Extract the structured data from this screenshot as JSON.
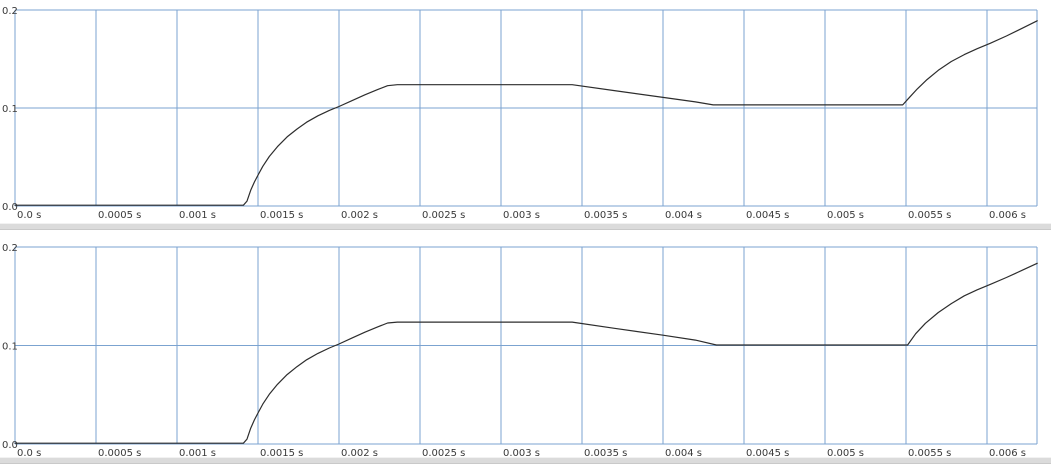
{
  "colors": {
    "grid": "#7ba3d0",
    "trace": "#2d2d2d",
    "tick_label": "#3a3a3a",
    "background": "#ffffff",
    "splitter": "#dbdbdb"
  },
  "chart_data": [
    {
      "type": "line",
      "title": "",
      "xlabel": "",
      "ylabel": "",
      "grid": true,
      "legend_position": "none",
      "xlim": [
        0,
        0.006309
      ],
      "ylim": [
        0,
        0.2
      ],
      "x_tick_values": [
        0,
        0.0005,
        0.001,
        0.0015,
        0.002,
        0.0025,
        0.003,
        0.0035,
        0.004,
        0.0045,
        0.005,
        0.0055,
        0.006
      ],
      "x_tick_labels": [
        "0.0 s",
        "0.0005 s",
        "0.001 s",
        "0.0015 s",
        "0.002 s",
        "0.0025 s",
        "0.003 s",
        "0.0035 s",
        "0.004 s",
        "0.0045 s",
        "0.005 s",
        "0.0055 s",
        "0.006 s"
      ],
      "y_tick_values": [
        0.2,
        0.1,
        0.0
      ],
      "y_tick_labels": [
        "0.2",
        "0.1",
        "0.0"
      ],
      "series": [
        {
          "points": [
            [
              0.0,
              0.0008
            ],
            [
              0.00141,
              0.0008
            ],
            [
              0.001432,
              0.005
            ],
            [
              0.001455,
              0.016
            ],
            [
              0.001478,
              0.0245
            ],
            [
              0.0015,
              0.0315
            ],
            [
              0.00153,
              0.0405
            ],
            [
              0.00157,
              0.0505
            ],
            [
              0.00162,
              0.0605
            ],
            [
              0.00168,
              0.0705
            ],
            [
              0.00174,
              0.0785
            ],
            [
              0.0018,
              0.0855
            ],
            [
              0.00187,
              0.092
            ],
            [
              0.00194,
              0.0975
            ],
            [
              0.002,
              0.1015
            ],
            [
              0.00208,
              0.1075
            ],
            [
              0.00216,
              0.1135
            ],
            [
              0.00224,
              0.119
            ],
            [
              0.0023,
              0.1228
            ],
            [
              0.00236,
              0.1238
            ],
            [
              0.00344,
              0.1238
            ],
            [
              0.0037,
              0.1178
            ],
            [
              0.004,
              0.1108
            ],
            [
              0.0042,
              0.1062
            ],
            [
              0.00431,
              0.1032
            ],
            [
              0.00548,
              0.1032
            ],
            [
              0.00552,
              0.1105
            ],
            [
              0.00557,
              0.1195
            ],
            [
              0.00563,
              0.129
            ],
            [
              0.0057,
              0.1385
            ],
            [
              0.00578,
              0.1475
            ],
            [
              0.00586,
              0.1545
            ],
            [
              0.00594,
              0.1605
            ],
            [
              0.00602,
              0.166
            ],
            [
              0.00612,
              0.1735
            ],
            [
              0.00622,
              0.1815
            ],
            [
              0.00631,
              0.189
            ]
          ]
        }
      ]
    },
    {
      "type": "line",
      "title": "",
      "xlabel": "",
      "ylabel": "",
      "grid": true,
      "legend_position": "none",
      "xlim": [
        0,
        0.006309
      ],
      "ylim": [
        0,
        0.2
      ],
      "x_tick_values": [
        0,
        0.0005,
        0.001,
        0.0015,
        0.002,
        0.0025,
        0.003,
        0.0035,
        0.004,
        0.0045,
        0.005,
        0.0055,
        0.006
      ],
      "x_tick_labels": [
        "0.0 s",
        "0.0005 s",
        "0.001 s",
        "0.0015 s",
        "0.002 s",
        "0.0025 s",
        "0.003 s",
        "0.0035 s",
        "0.004 s",
        "0.0045 s",
        "0.005 s",
        "0.0055 s",
        "0.006 s"
      ],
      "y_tick_values": [
        0.2,
        0.1,
        0.0
      ],
      "y_tick_labels": [
        "0.2",
        "0.1",
        "0.0"
      ],
      "series": [
        {
          "points": [
            [
              0.0,
              0.0008
            ],
            [
              0.00141,
              0.0008
            ],
            [
              0.001432,
              0.005
            ],
            [
              0.001455,
              0.016
            ],
            [
              0.001478,
              0.0245
            ],
            [
              0.0015,
              0.0315
            ],
            [
              0.00153,
              0.0405
            ],
            [
              0.00157,
              0.0505
            ],
            [
              0.00162,
              0.0605
            ],
            [
              0.00168,
              0.0705
            ],
            [
              0.00174,
              0.0785
            ],
            [
              0.0018,
              0.0855
            ],
            [
              0.00187,
              0.092
            ],
            [
              0.00194,
              0.0975
            ],
            [
              0.002,
              0.1015
            ],
            [
              0.00208,
              0.1075
            ],
            [
              0.00216,
              0.1135
            ],
            [
              0.00224,
              0.119
            ],
            [
              0.0023,
              0.1228
            ],
            [
              0.00236,
              0.1238
            ],
            [
              0.00344,
              0.1238
            ],
            [
              0.0037,
              0.1175
            ],
            [
              0.004,
              0.1105
            ],
            [
              0.0042,
              0.1055
            ],
            [
              0.00433,
              0.1005
            ],
            [
              0.00551,
              0.1005
            ],
            [
              0.00556,
              0.112
            ],
            [
              0.00562,
              0.1225
            ],
            [
              0.0057,
              0.1335
            ],
            [
              0.00578,
              0.1425
            ],
            [
              0.00586,
              0.1505
            ],
            [
              0.00594,
              0.1565
            ],
            [
              0.00602,
              0.162
            ],
            [
              0.00612,
              0.169
            ],
            [
              0.00622,
              0.1765
            ],
            [
              0.00631,
              0.1835
            ]
          ]
        }
      ]
    }
  ]
}
